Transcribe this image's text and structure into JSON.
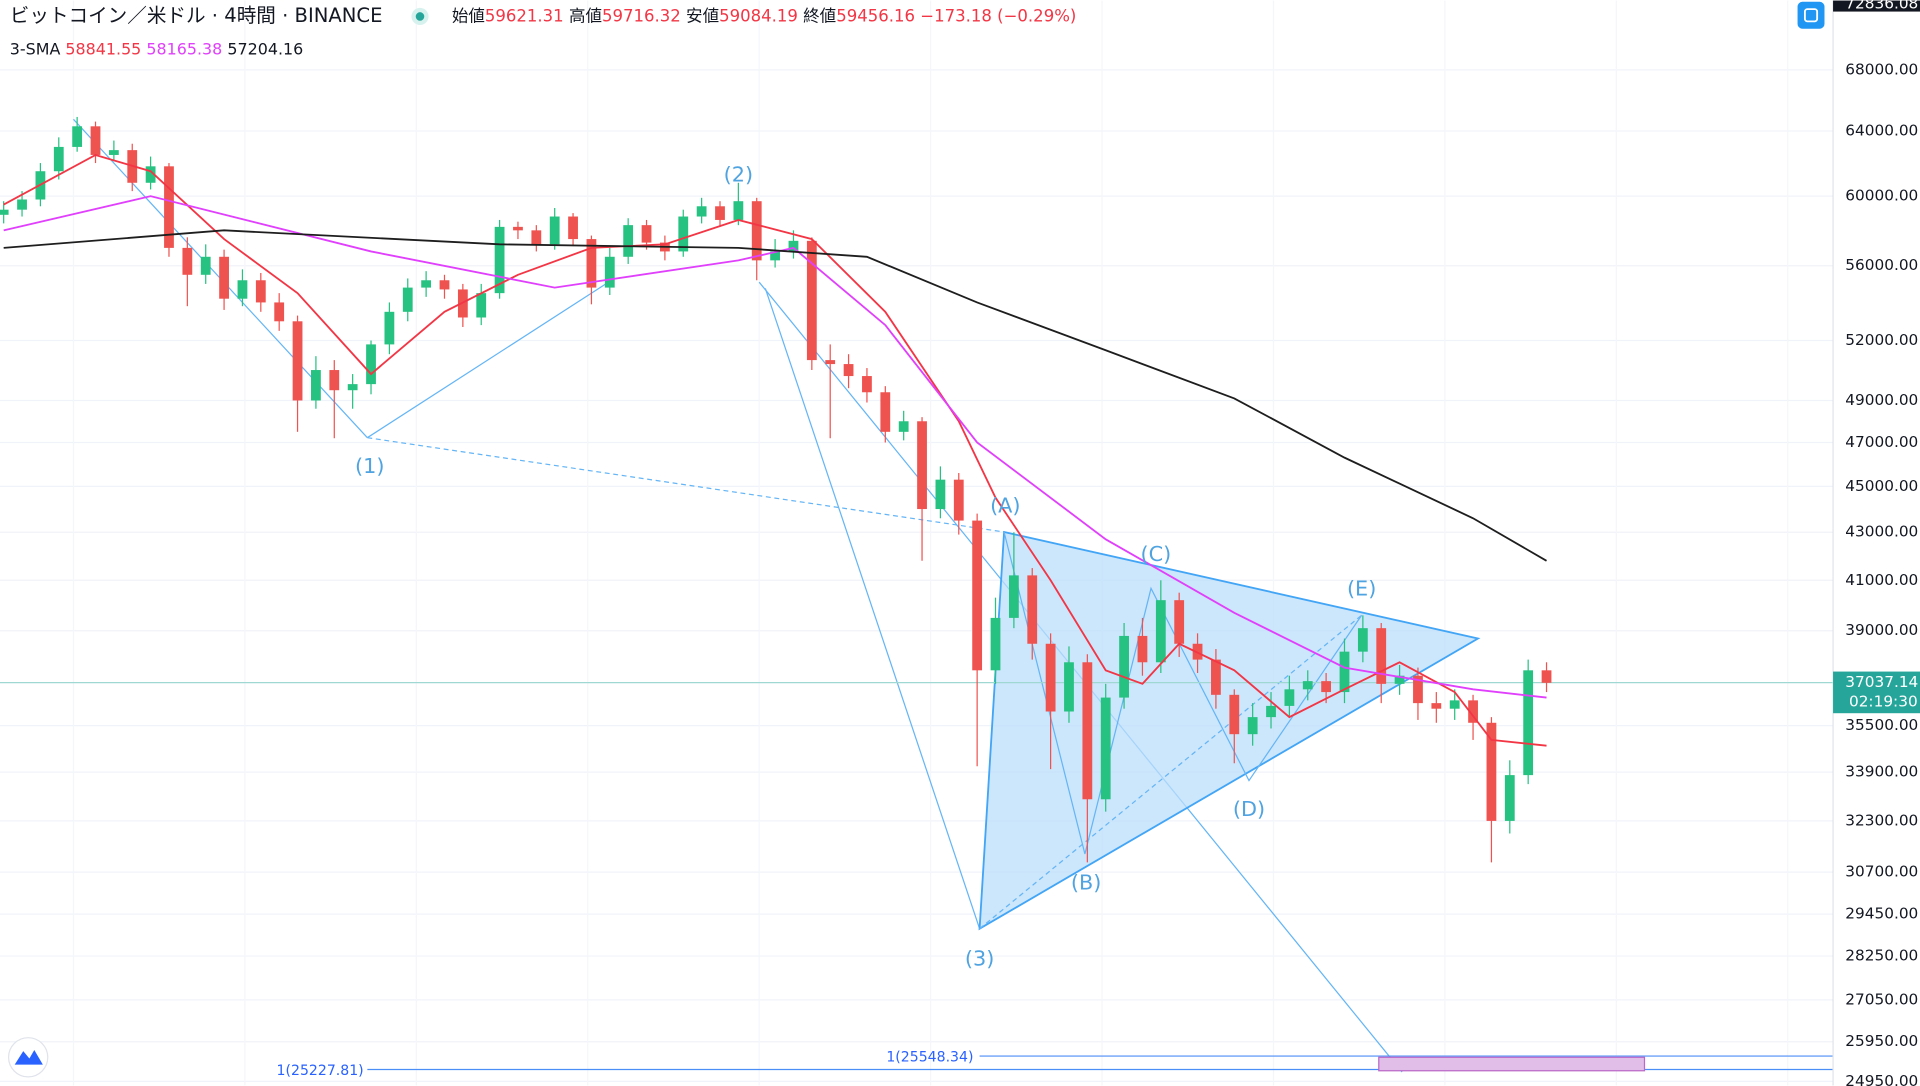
{
  "header": {
    "symbol": "ビットコイン／米ドル · 4時間 · BINANCE",
    "ohlc": [
      {
        "label": "始値",
        "value": "59621.31"
      },
      {
        "label": "高値",
        "value": "59716.32"
      },
      {
        "label": "安値",
        "value": "59084.19"
      },
      {
        "label": "終値",
        "value": "59456.16"
      }
    ],
    "change": "−173.18 (−0.29%)",
    "indicator": "3-SMA",
    "indicator_values": [
      "58841.55",
      "58165.38",
      "57204.16"
    ]
  },
  "annotations": {
    "waves": [
      "(1)",
      "(2)",
      "(3)",
      "(A)",
      "(B)",
      "(C)",
      "(D)",
      "(E)"
    ],
    "fib_left": "1(25227.81)",
    "fib_right": "1(25548.34)",
    "countdown": "02:19:30"
  },
  "chart_data": {
    "type": "candlestick",
    "log_scale": true,
    "grid": true,
    "up_color": "#26c281",
    "down_color": "#ef5350",
    "ylim": [
      24850,
      72836.08
    ],
    "top_price": 72836.08,
    "last_price": 37037.14,
    "yticks": [
      {
        "value": 68000,
        "label": "68000.00"
      },
      {
        "value": 64000,
        "label": "64000.00"
      },
      {
        "value": 60000,
        "label": "60000.00"
      },
      {
        "value": 56000,
        "label": "56000.00"
      },
      {
        "value": 52000,
        "label": "52000.00"
      },
      {
        "value": 49000,
        "label": "49000.00"
      },
      {
        "value": 47000,
        "label": "47000.00"
      },
      {
        "value": 45000,
        "label": "45000.00"
      },
      {
        "value": 43000,
        "label": "43000.00"
      },
      {
        "value": 41000,
        "label": "41000.00"
      },
      {
        "value": 39000,
        "label": "39000.00"
      },
      {
        "value": 35500,
        "label": "35500.00"
      },
      {
        "value": 33900,
        "label": "33900.00"
      },
      {
        "value": 32300,
        "label": "32300.00"
      },
      {
        "value": 30700,
        "label": "30700.00"
      },
      {
        "value": 29450,
        "label": "29450.00"
      },
      {
        "value": 28250,
        "label": "28250.00"
      },
      {
        "value": 27050,
        "label": "27050.00"
      },
      {
        "value": 25950,
        "label": "25950.00"
      },
      {
        "value": 24950,
        "label": "24950.00"
      }
    ],
    "open": [
      58900,
      59200,
      59800,
      61500,
      63000,
      64300,
      62500,
      62800,
      60800,
      61800,
      57000,
      55500,
      56500,
      54200,
      55200,
      54000,
      53000,
      49000,
      50500,
      49500,
      49800,
      51800,
      53500,
      54800,
      55200,
      54700,
      53200,
      54500,
      58200,
      58000,
      57200,
      58800,
      57500,
      54800,
      56500,
      58300,
      57300,
      56800,
      58800,
      59400,
      58600,
      59700,
      56300,
      56800,
      57400,
      51000,
      50800,
      50200,
      49400,
      47500,
      48000,
      44000,
      45300,
      43500,
      37500,
      39500,
      41200,
      38500,
      36000,
      37800,
      33000,
      36500,
      38800,
      37800,
      40200,
      38500,
      37900,
      36600,
      35200,
      35800,
      36200,
      36800,
      37100,
      36700,
      38200,
      39100,
      37000,
      37300,
      36300,
      36100,
      36400,
      35600,
      32300,
      33800,
      37500
    ],
    "high": [
      59700,
      60300,
      62000,
      63600,
      64900,
      64600,
      63400,
      63200,
      62400,
      62000,
      57600,
      57200,
      56900,
      55800,
      55600,
      54500,
      53300,
      51200,
      51000,
      50300,
      52000,
      54000,
      55300,
      55700,
      55500,
      55000,
      55000,
      58600,
      58500,
      58300,
      59300,
      59000,
      57700,
      57000,
      58700,
      58600,
      57700,
      59200,
      59900,
      59700,
      60800,
      59900,
      57500,
      58000,
      57600,
      51800,
      51300,
      50600,
      49700,
      48500,
      48200,
      45900,
      45600,
      43800,
      40300,
      43000,
      41500,
      38900,
      38400,
      38100,
      37000,
      39300,
      39500,
      41000,
      40500,
      38900,
      38300,
      36800,
      36300,
      36700,
      37300,
      37500,
      37400,
      38700,
      39600,
      39300,
      37700,
      37600,
      36700,
      36800,
      36600,
      35800,
      34300,
      37900,
      37800
    ],
    "low": [
      58400,
      58800,
      59400,
      61000,
      62700,
      62000,
      62100,
      60300,
      60400,
      56500,
      53800,
      55000,
      53600,
      53800,
      53500,
      52500,
      47500,
      48600,
      47200,
      48600,
      49300,
      51300,
      53000,
      54300,
      54200,
      52700,
      52800,
      54200,
      57500,
      56800,
      56900,
      57100,
      53900,
      54400,
      56100,
      56900,
      56300,
      56500,
      58400,
      58200,
      58300,
      55200,
      55900,
      56400,
      50500,
      47200,
      49600,
      48900,
      47000,
      47100,
      41800,
      43600,
      42900,
      34100,
      37000,
      39100,
      37900,
      34000,
      35600,
      31000,
      32600,
      36100,
      37300,
      37400,
      38000,
      37400,
      36100,
      34200,
      34800,
      35400,
      35800,
      36400,
      36300,
      36300,
      37800,
      36300,
      36600,
      35700,
      35600,
      35700,
      35000,
      31000,
      31900,
      33500,
      36700
    ],
    "close": [
      59200,
      59800,
      61500,
      63000,
      64300,
      62500,
      62800,
      60800,
      61800,
      57000,
      55500,
      56500,
      54200,
      55200,
      54000,
      53000,
      49000,
      50500,
      49500,
      49800,
      51800,
      53500,
      54800,
      55200,
      54700,
      53200,
      54500,
      58200,
      58000,
      57200,
      58800,
      57500,
      54800,
      56500,
      58300,
      57300,
      56800,
      58800,
      59400,
      58600,
      59700,
      56300,
      56800,
      57400,
      51000,
      50800,
      50200,
      49400,
      47500,
      48000,
      44000,
      45300,
      43500,
      37500,
      39500,
      41200,
      38500,
      36000,
      37800,
      33000,
      36500,
      38800,
      37800,
      40200,
      38500,
      37900,
      36600,
      35200,
      35800,
      36200,
      36800,
      37100,
      36700,
      38200,
      39100,
      37000,
      37300,
      36300,
      36100,
      36400,
      35600,
      32300,
      33800,
      37500,
      37037.14
    ],
    "series": [
      {
        "color": "#f23645",
        "x": [
          0,
          5,
          8,
          12,
          16,
          20,
          24,
          28,
          32,
          36,
          40,
          44,
          48,
          52,
          54,
          57,
          60,
          62,
          64,
          67,
          70,
          73,
          76,
          79,
          81,
          84
        ],
        "values": [
          59500,
          62500,
          61500,
          57500,
          54500,
          50300,
          53500,
          55500,
          57000,
          57200,
          58600,
          57500,
          53500,
          48000,
          44500,
          41000,
          37500,
          37000,
          38500,
          37500,
          35800,
          36800,
          37800,
          36700,
          35000,
          34800
        ]
      },
      {
        "color": "#e040fb",
        "x": [
          0,
          8,
          20,
          30,
          40,
          43,
          48,
          53,
          60,
          67,
          73,
          80,
          84
        ],
        "values": [
          58000,
          60000,
          56800,
          54800,
          56300,
          57000,
          52800,
          47000,
          42700,
          39700,
          37600,
          36800,
          36500
        ]
      },
      {
        "color": "#1e1e1e",
        "x": [
          0,
          12,
          27,
          40,
          47,
          53,
          60,
          67,
          73,
          80,
          84
        ],
        "values": [
          57000,
          58000,
          57200,
          57000,
          56500,
          54000,
          51500,
          49100,
          46300,
          43600,
          41800
        ]
      }
    ]
  }
}
